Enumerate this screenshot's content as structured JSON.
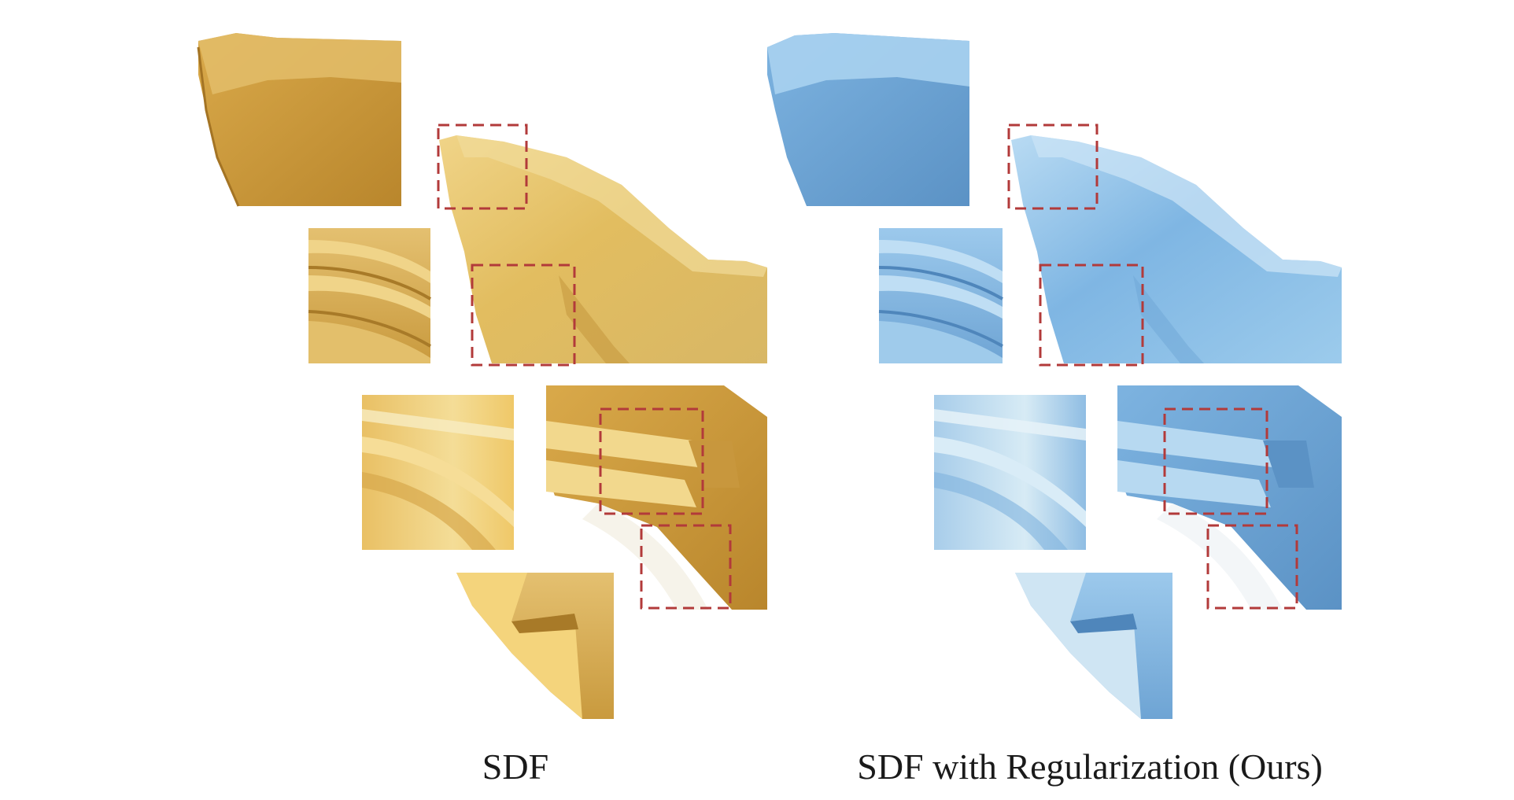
{
  "captions": {
    "left": "SDF",
    "right": "SDF with Regularization (Ours)"
  },
  "panels": [
    {
      "id": "sdf",
      "palette": {
        "light": "#f2d789",
        "mid": "#dcb451",
        "dark": "#b9862c",
        "shadow": "#a8782a"
      }
    },
    {
      "id": "ours",
      "palette": {
        "light": "#bcdcf2",
        "mid": "#88bbe3",
        "dark": "#5f97c9",
        "shadow": "#4e86bb"
      }
    }
  ],
  "highlight_box_color": "#b23a3a"
}
